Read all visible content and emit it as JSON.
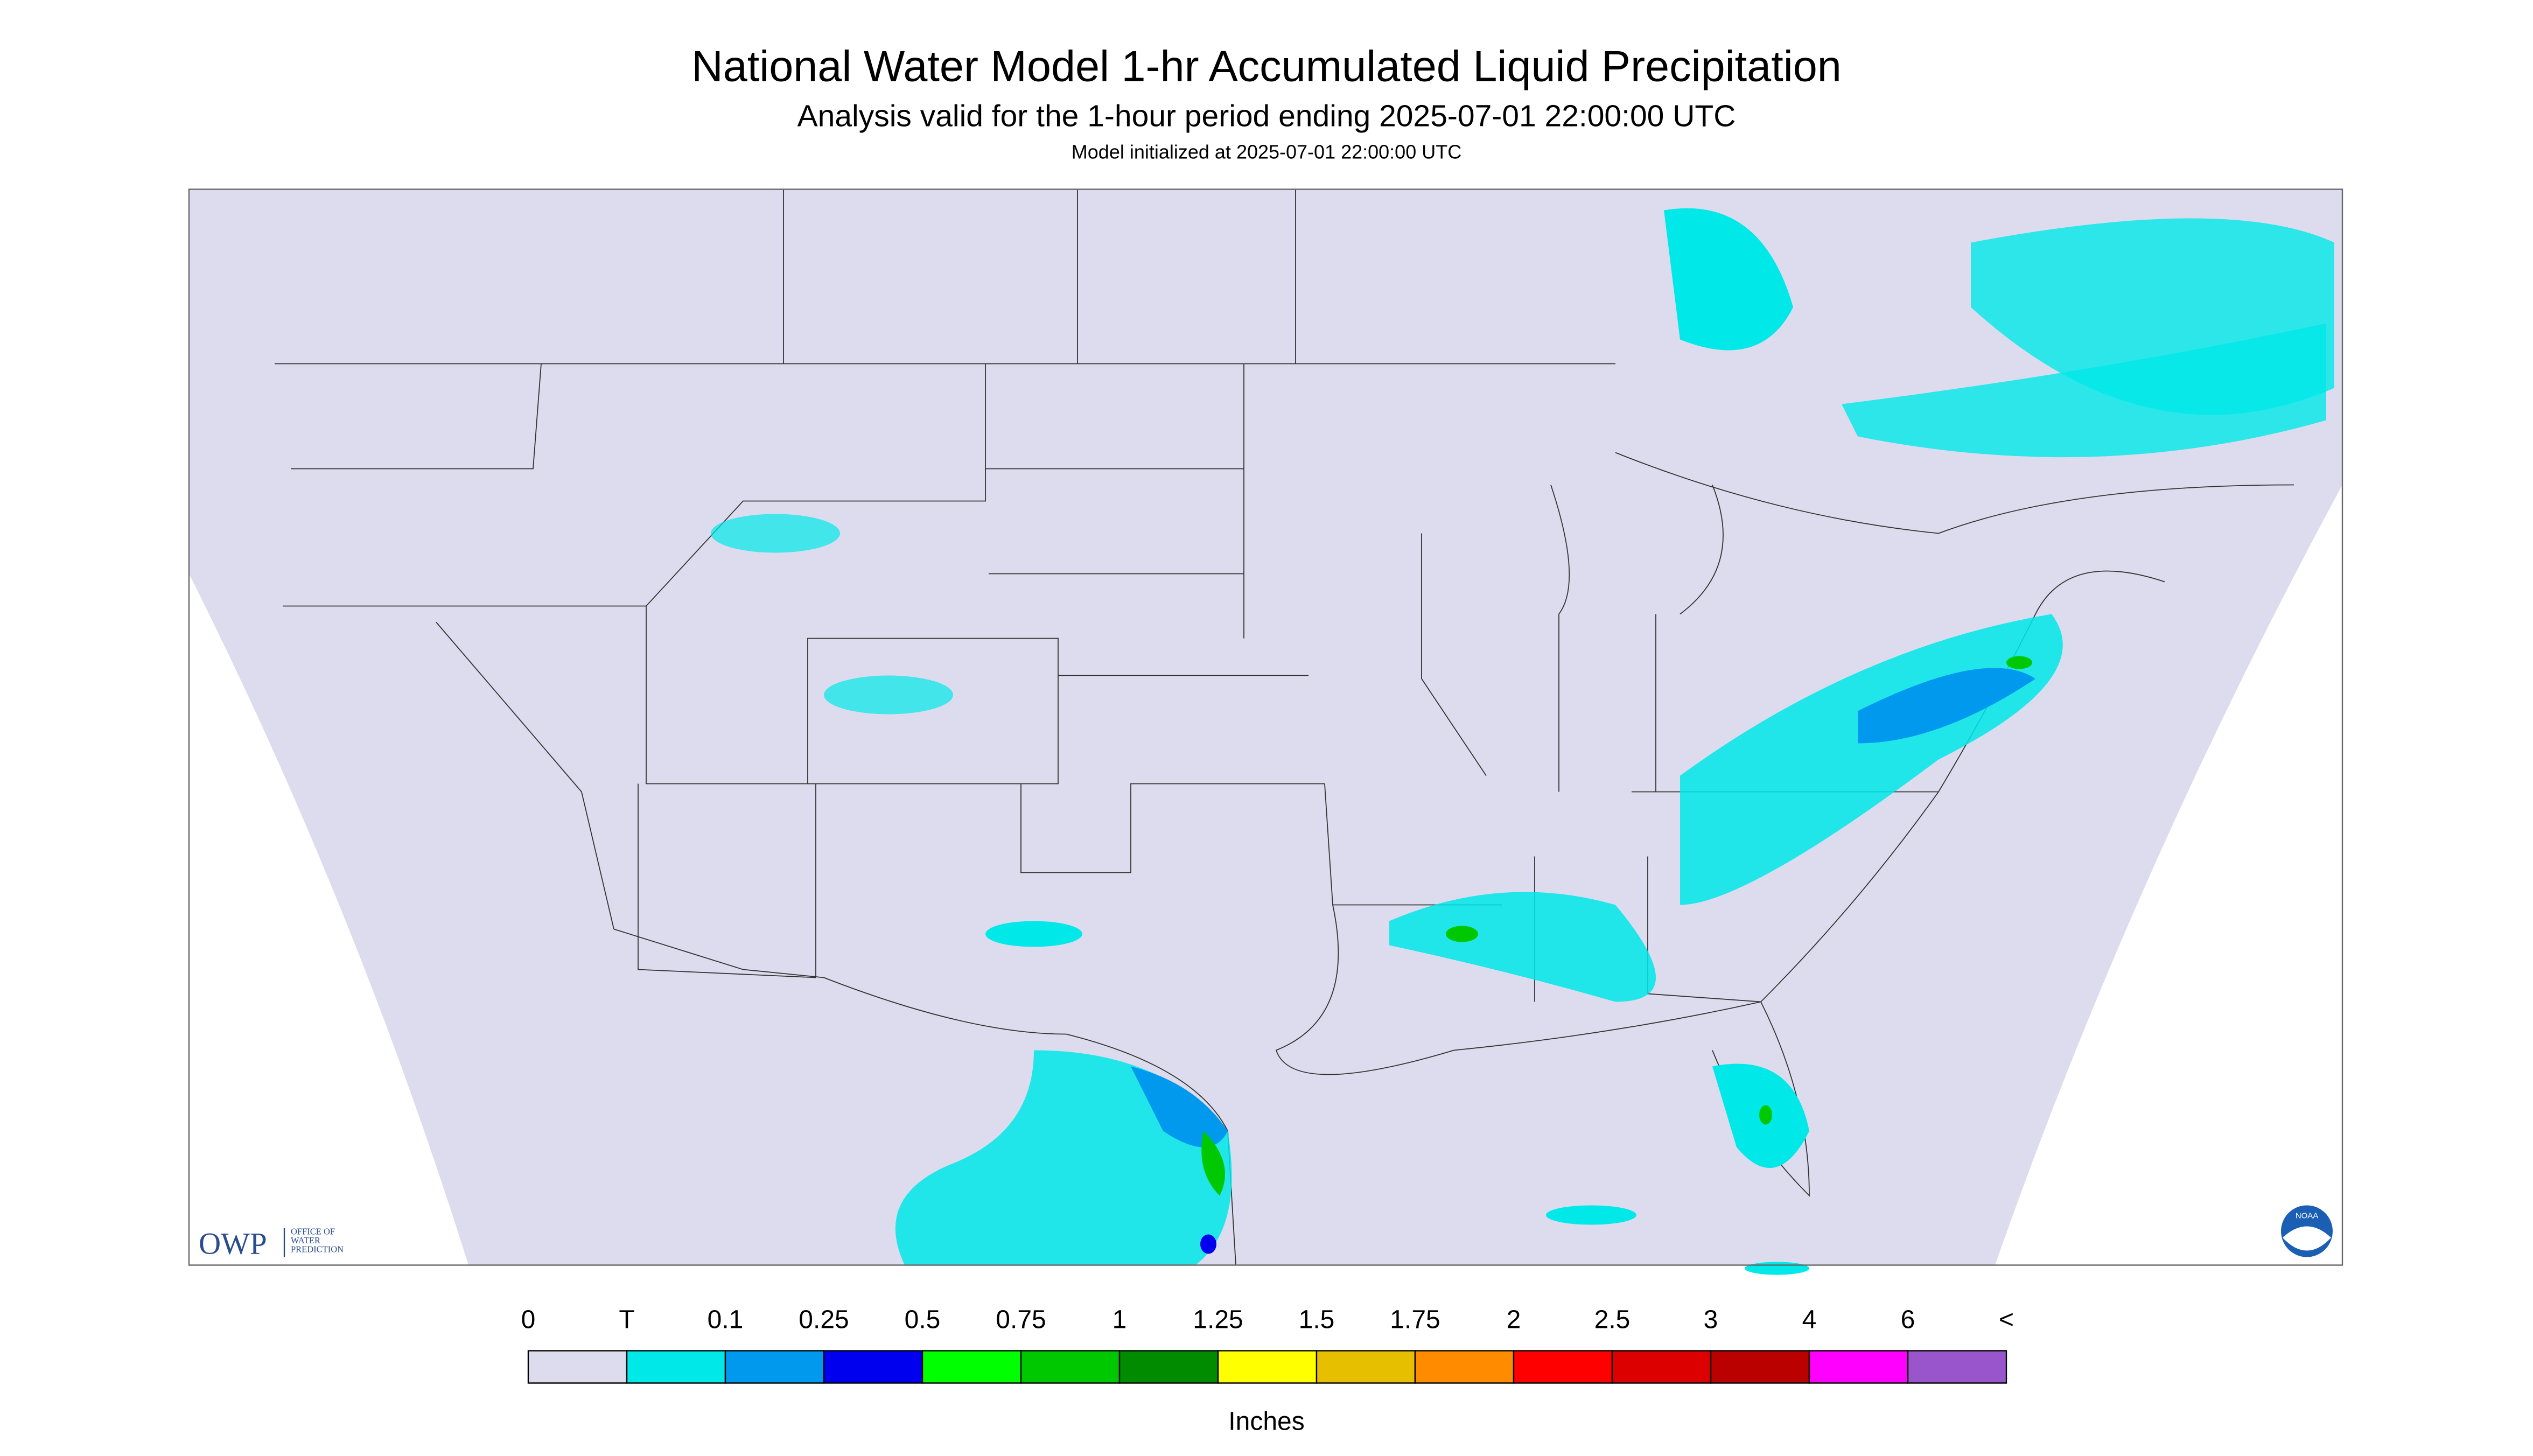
{
  "header": {
    "title": "National Water Model 1-hr Accumulated Liquid Precipitation",
    "subtitle": "Analysis valid for the 1-hour period ending 2025-07-01 22:00:00 UTC",
    "init": "Model initialized at 2025-07-01 22:00:00 UTC"
  },
  "legend": {
    "labels": [
      "0",
      "T",
      "0.1",
      "0.25",
      "0.5",
      "0.75",
      "1",
      "1.25",
      "1.5",
      "1.75",
      "2",
      "2.5",
      "3",
      "4",
      "6",
      "<"
    ],
    "colors": [
      "#dcdcee",
      "#00e8e8",
      "#0099ee",
      "#0000ee",
      "#00ff00",
      "#00c800",
      "#008b00",
      "#ffff00",
      "#e6bf00",
      "#ff8c00",
      "#ff0000",
      "#dd0000",
      "#bb0000",
      "#ff00ff",
      "#9955cc"
    ],
    "units": "Inches"
  },
  "logos": {
    "owp": "OWP",
    "owp_lines": [
      "OFFICE OF",
      "WATER",
      "PREDICTION"
    ],
    "noaa": "NOAA"
  }
}
